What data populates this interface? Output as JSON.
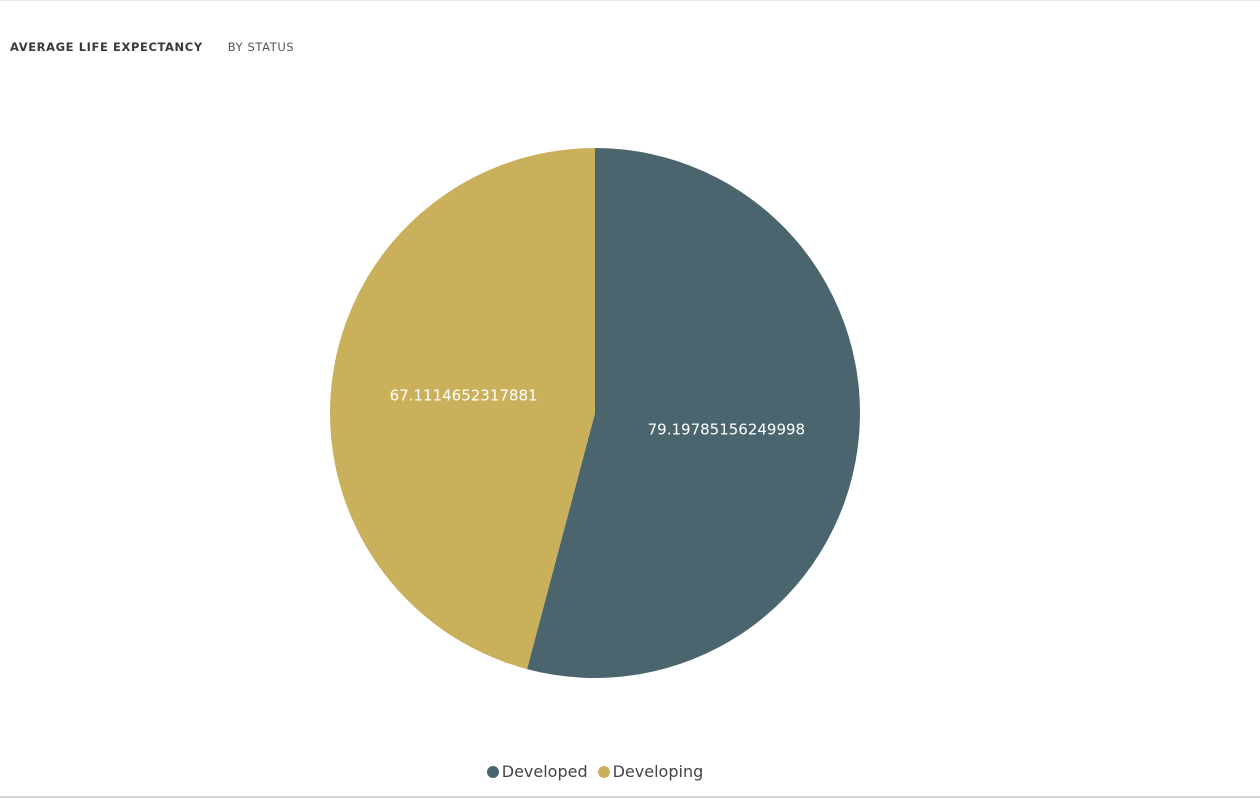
{
  "header": {
    "title": "AVERAGE LIFE EXPECTANCY",
    "subtitle": "BY STATUS"
  },
  "chart_data": {
    "type": "pie",
    "title": "AVERAGE LIFE EXPECTANCY",
    "subtitle": "BY STATUS",
    "categories": [
      "Developed",
      "Developing"
    ],
    "values": [
      79.19785156249998,
      67.1114652317881
    ],
    "labels": [
      "79.19785156249998",
      "67.1114652317881"
    ],
    "colors": [
      "#4a656d",
      "#cbb05b"
    ],
    "start": "12 o'clock",
    "direction": "clockwise",
    "legend_position": "bottom"
  }
}
